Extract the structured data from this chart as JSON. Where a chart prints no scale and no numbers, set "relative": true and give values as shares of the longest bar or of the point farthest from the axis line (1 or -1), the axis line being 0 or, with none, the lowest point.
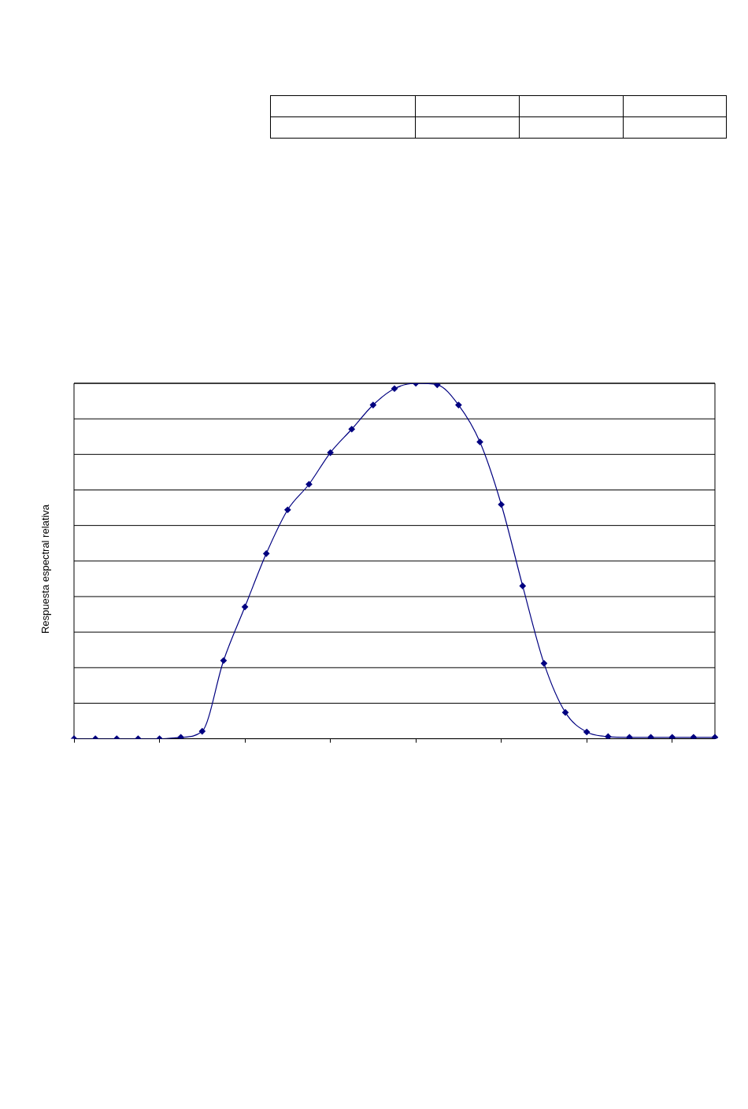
{
  "chart_data": {
    "type": "line",
    "ylabel": "Respuesta espectral relativa",
    "relative": true,
    "grid": "y",
    "legend": false,
    "marker": "diamond",
    "line_style": "solid",
    "categories": [
      null,
      null,
      null,
      null,
      null,
      null,
      null,
      null,
      null,
      null,
      null,
      null,
      null,
      null,
      null,
      null,
      null,
      null,
      null,
      null,
      null,
      null,
      null,
      null,
      null,
      null,
      null,
      null,
      null,
      null,
      null
    ],
    "series": [
      {
        "color": "#000080",
        "values": [
          0,
          0,
          0,
          0,
          0,
          0.004,
          0.021,
          0.22,
          0.371,
          0.521,
          0.644,
          0.716,
          0.805,
          0.871,
          0.939,
          0.985,
          1,
          0.996,
          0.939,
          0.835,
          0.659,
          0.43,
          0.212,
          0.074,
          0.019,
          0.006,
          0.004,
          0.004,
          0.004,
          0.004,
          0.004
        ]
      }
    ]
  }
}
